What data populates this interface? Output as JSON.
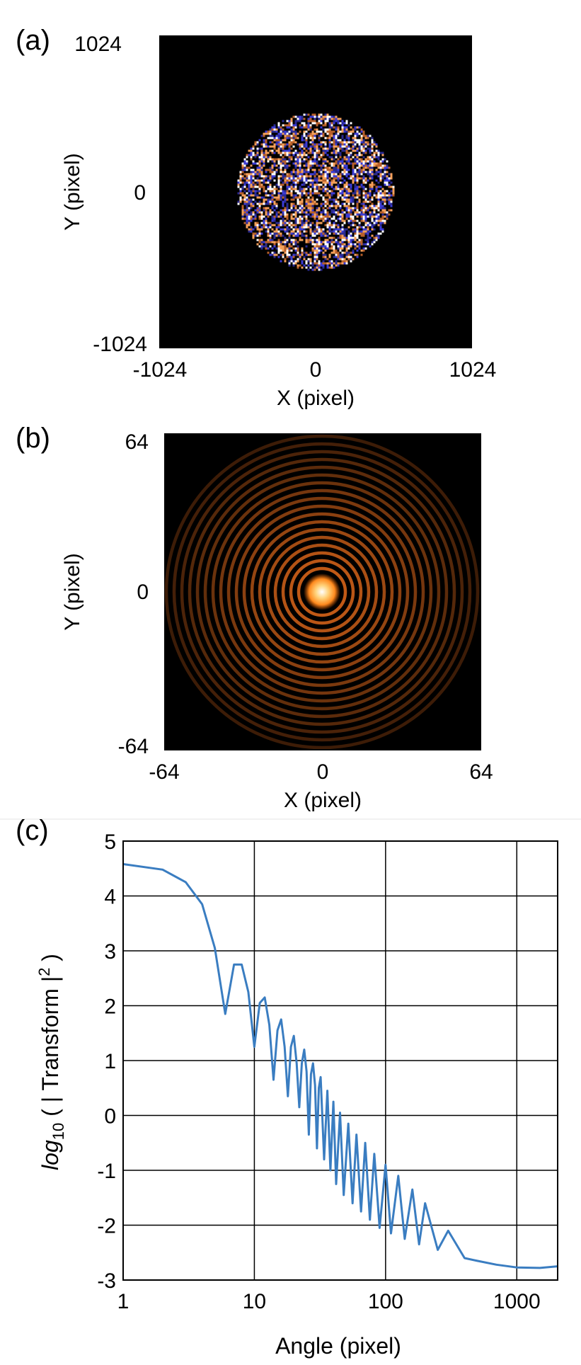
{
  "panels": {
    "a": {
      "label": "(a)",
      "xlabel": "X (pixel)",
      "ylabel": "Y (pixel)",
      "xticks": [
        "-1024",
        "0",
        "1024"
      ],
      "yticks": [
        "1024",
        "0",
        "-1024"
      ],
      "xlim": [
        -1024,
        1024
      ],
      "ylim": [
        -1024,
        1024
      ],
      "disk_radius": 512,
      "colors": {
        "background": "#000000",
        "speckle": [
          "#f5a05a",
          "#ffffff",
          "#3b3bd6",
          "#b8602a",
          "#2a2a90"
        ]
      }
    },
    "b": {
      "label": "(b)",
      "xlabel": "X (pixel)",
      "ylabel": "Y (pixel)",
      "xticks": [
        "-64",
        "0",
        "64"
      ],
      "yticks": [
        "64",
        "0",
        "-64"
      ],
      "xlim": [
        -64,
        64
      ],
      "ylim": [
        -64,
        64
      ],
      "colors": {
        "background": "#000000",
        "ring": "#e0681a",
        "center": "#ffffff"
      }
    }
  },
  "chart_data": {
    "type": "line",
    "panel_label": "(c)",
    "title": "",
    "xlabel": "Angle (pixel)",
    "ylabel_prefix": "log",
    "ylabel_sub": "10",
    "ylabel_rest": " ( | Transform |",
    "ylabel_sup": "2",
    "ylabel_end": " )",
    "xscale": "log",
    "xlim": [
      1,
      2048
    ],
    "ylim": [
      -3,
      5
    ],
    "grid": true,
    "xtick_values": [
      1,
      10,
      100,
      1000
    ],
    "xtick_labels": [
      "1",
      "10",
      "100",
      "1000"
    ],
    "ytick_values": [
      5,
      4,
      3,
      2,
      1,
      0,
      -1,
      -2,
      -3
    ],
    "ytick_labels": [
      "5",
      "4",
      "3",
      "2",
      "1",
      "0",
      "-1",
      "-2",
      "-3"
    ],
    "series": [
      {
        "color": "#3a7dc1",
        "x": [
          1,
          2,
          3,
          4,
          5,
          6,
          7,
          8,
          9,
          10,
          11,
          12,
          13,
          14,
          15,
          16,
          17,
          18,
          19,
          20,
          21,
          22,
          23,
          24,
          25,
          26,
          27,
          28,
          29,
          30,
          31,
          32,
          34,
          36,
          38,
          40,
          42,
          45,
          48,
          52,
          56,
          60,
          65,
          70,
          76,
          82,
          90,
          100,
          110,
          125,
          140,
          160,
          180,
          200,
          250,
          300,
          400,
          500,
          700,
          1000,
          1500,
          2048
        ],
        "y": [
          4.58,
          4.48,
          4.25,
          3.85,
          3.05,
          1.85,
          2.75,
          2.75,
          2.25,
          1.25,
          2.05,
          2.15,
          1.65,
          0.65,
          1.55,
          1.75,
          1.25,
          0.35,
          1.25,
          1.45,
          0.95,
          0.15,
          0.95,
          1.2,
          0.8,
          -0.35,
          0.75,
          0.95,
          0.55,
          -0.6,
          0.5,
          0.7,
          -0.8,
          0.45,
          -1.0,
          0.25,
          -1.25,
          0.05,
          -1.45,
          -0.15,
          -1.6,
          -0.35,
          -1.75,
          -0.5,
          -1.9,
          -0.7,
          -2.05,
          -0.9,
          -2.15,
          -1.1,
          -2.25,
          -1.35,
          -2.35,
          -1.6,
          -2.45,
          -2.1,
          -2.6,
          -2.65,
          -2.72,
          -2.77,
          -2.78,
          -2.75
        ]
      }
    ]
  }
}
